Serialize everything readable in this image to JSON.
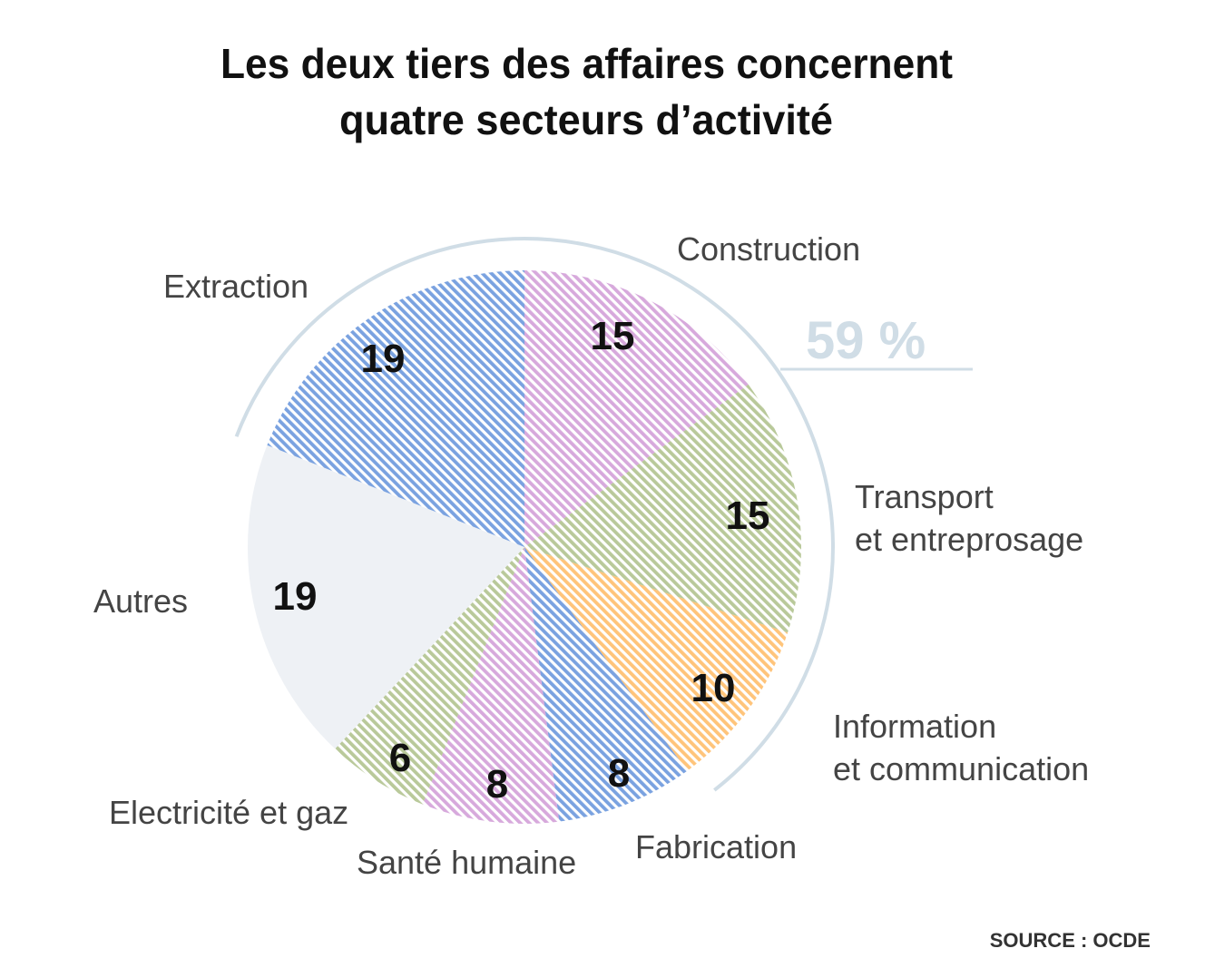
{
  "chart_data": {
    "type": "pie",
    "title": [
      "Les deux tiers des affaires concernent",
      "quatre secteurs d’activité"
    ],
    "slices": [
      {
        "label": [
          "Construction"
        ],
        "value": 15,
        "color": "#d7a9dc"
      },
      {
        "label": [
          "Transport",
          "et entreprosage"
        ],
        "value": 15,
        "color": "#b9c99a"
      },
      {
        "label": [
          "Information",
          "et communication"
        ],
        "value": 10,
        "color": "#ffc47a"
      },
      {
        "label": [
          "Fabrication"
        ],
        "value": 8,
        "color": "#7aa2e0"
      },
      {
        "label": [
          "Santé humaine"
        ],
        "value": 8,
        "color": "#d7a9dc"
      },
      {
        "label": [
          "Electricité et gaz"
        ],
        "value": 6,
        "color": "#b9c99a"
      },
      {
        "label": [
          "Autres"
        ],
        "value": 19,
        "color": "#eef1f5",
        "solid": true
      },
      {
        "label": [
          "Extraction"
        ],
        "value": 19,
        "color": "#7aa2e0"
      }
    ],
    "annotation": "59 %",
    "annotation_color": "#d0dde6",
    "source": "SOURCE : OCDE"
  }
}
